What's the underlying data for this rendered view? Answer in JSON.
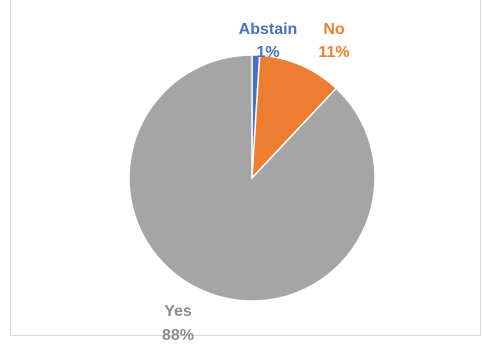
{
  "chart_data": {
    "type": "pie",
    "title": "",
    "slices": [
      {
        "label": "Abstain",
        "value": 1,
        "display": "1%",
        "color": "#4472c4"
      },
      {
        "label": "No",
        "value": 11,
        "display": "11%",
        "color": "#ed7d31"
      },
      {
        "label": "Yes",
        "value": 88,
        "display": "88%",
        "color": "#a5a5a5"
      }
    ],
    "start_angle_deg": 0,
    "direction": "clockwise",
    "legend": "none",
    "data_labels": "outside-with-category"
  }
}
